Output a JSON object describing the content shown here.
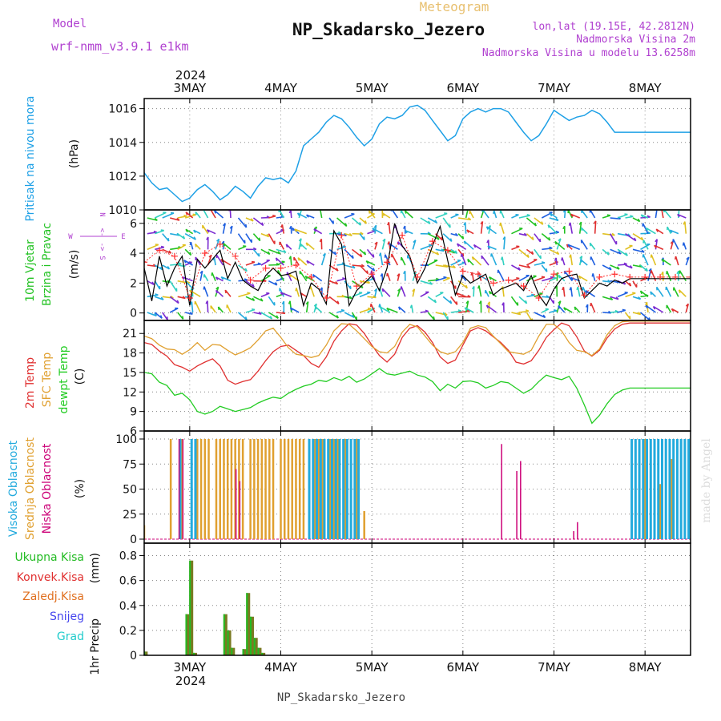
{
  "header": {
    "model_label": "Model",
    "model_name": "wrf-nmm_v3.9.1 e1km",
    "meteogram_label": "Meteogram",
    "station_title": "NP_Skadarsko_Jezero",
    "coords": "lon,lat (19.15E, 42.2812N)",
    "elevation": "Nadmorska Visina 2m",
    "model_elevation": "Nadmorska Visina u modelu 13.6258m",
    "footer_title": "NP_Skadarsko_Jezero",
    "watermark": "made by Angel"
  },
  "time_axis": {
    "year": "2024",
    "days": [
      "3MAY",
      "4MAY",
      "5MAY",
      "6MAY",
      "7MAY",
      "8MAY"
    ],
    "day_hours": [
      12,
      36,
      60,
      84,
      108,
      132
    ],
    "range_hours": [
      0,
      144
    ]
  },
  "colors": {
    "pressure": "#1ea0e6",
    "wind_title": "#22c222",
    "wind_speed": "#000000",
    "gust": "#ff3030",
    "temp2m": "#e03030",
    "sfc_temp": "#e0a030",
    "dewpt": "#22cc22",
    "cloud_high": "#22aadd",
    "cloud_mid": "#e0a030",
    "cloud_low": "#cc0077",
    "precip_total": "#22bb22",
    "precip_conv": "#e03030",
    "precip_frozen": "#e07020",
    "snow": "#4444ee",
    "graupel": "#22cccc",
    "precip_bar": "#7a7a22",
    "compass": "#b040d0",
    "grid": "#888888"
  },
  "chart_data": [
    {
      "type": "line",
      "ylabel": "Pritisak na nivou mora",
      "unit": "(hPa)",
      "ylim": [
        1010,
        1016.6
      ],
      "yticks": [
        1010,
        1012,
        1014,
        1016
      ],
      "grid": true,
      "x": [
        0,
        2,
        4,
        6,
        8,
        10,
        12,
        14,
        16,
        18,
        20,
        22,
        24,
        26,
        28,
        30,
        32,
        34,
        36,
        38,
        40,
        42,
        44,
        46,
        48,
        50,
        52,
        54,
        56,
        58,
        60,
        62,
        64,
        66,
        68,
        70,
        72,
        74,
        76,
        78,
        80,
        82,
        84,
        86,
        88,
        90,
        92,
        94,
        96,
        98,
        100,
        102,
        104,
        106,
        108,
        110,
        112,
        114,
        116,
        118,
        120,
        122,
        124,
        126,
        128,
        130,
        132,
        134,
        136,
        138,
        140,
        142,
        144
      ],
      "values": [
        1012.2,
        1011.6,
        1011.2,
        1011.3,
        1010.9,
        1010.5,
        1010.7,
        1011.2,
        1011.5,
        1011.1,
        1010.6,
        1010.9,
        1011.4,
        1011.1,
        1010.7,
        1011.4,
        1011.9,
        1011.8,
        1011.9,
        1011.6,
        1012.3,
        1013.8,
        1014.2,
        1014.6,
        1015.2,
        1015.6,
        1015.4,
        1014.9,
        1014.3,
        1013.8,
        1014.2,
        1015.1,
        1015.5,
        1015.4,
        1015.6,
        1016.1,
        1016.2,
        1015.9,
        1015.3,
        1014.7,
        1014.1,
        1014.4,
        1015.4,
        1015.8,
        1016.0,
        1015.8,
        1016.0,
        1016.0,
        1015.8,
        1015.2,
        1014.6,
        1014.1,
        1014.4,
        1015.1,
        1015.9,
        1015.6,
        1015.3,
        1015.5,
        1015.6,
        1015.9,
        1015.7,
        1015.2,
        1014.6,
        1014.6,
        1014.6,
        1014.6,
        1014.6,
        1014.6,
        1014.6,
        1014.6,
        1014.6,
        1014.6,
        1014.6
      ]
    },
    {
      "type": "line",
      "title": "10m Vjetar",
      "ylabel": "Brzina i Pravac",
      "unit": "(m/s)",
      "compass": {
        "north": "N",
        "west": "W",
        "east": "E",
        "south": "S",
        "left": "<-",
        "right": "->"
      },
      "ylim": [
        -0.5,
        6.9
      ],
      "yticks": [
        0,
        2,
        4,
        6
      ],
      "grid": true,
      "series": [
        {
          "role": "speed",
          "x": [
            0,
            2,
            4,
            6,
            8,
            10,
            12,
            14,
            16,
            18,
            20,
            22,
            24,
            26,
            28,
            30,
            32,
            34,
            36,
            38,
            40,
            42,
            44,
            46,
            48,
            50,
            52,
            54,
            56,
            58,
            60,
            62,
            64,
            66,
            68,
            70,
            72,
            74,
            76,
            78,
            80,
            82,
            84,
            86,
            88,
            90,
            92,
            94,
            96,
            98,
            100,
            102,
            104,
            106,
            108,
            110,
            112,
            114,
            116,
            118,
            120,
            122,
            124,
            126,
            128,
            130,
            132,
            134,
            136,
            138,
            140,
            142,
            144
          ],
          "values": [
            3.0,
            0.8,
            3.8,
            1.8,
            3.0,
            3.8,
            0.5,
            3.6,
            3.0,
            3.6,
            4.2,
            2.3,
            3.4,
            2.2,
            1.8,
            1.5,
            2.5,
            3.0,
            2.5,
            2.6,
            2.8,
            0.5,
            2.0,
            1.6,
            0.6,
            5.5,
            4.6,
            0.5,
            1.5,
            2.0,
            2.5,
            1.5,
            3.0,
            6.0,
            4.5,
            3.8,
            2.0,
            3.0,
            4.5,
            5.8,
            3.5,
            1.2,
            2.5,
            2.0,
            2.3,
            2.6,
            1.2,
            1.6,
            1.8,
            2.0,
            1.5,
            2.5,
            1.2,
            0.5,
            1.6,
            2.3,
            2.5,
            2.6,
            1.0,
            1.5,
            2.0,
            1.8,
            2.2,
            2.0,
            2.3,
            2.3,
            2.3,
            2.3,
            2.3,
            2.3,
            2.3,
            2.3,
            2.3
          ]
        },
        {
          "role": "gust",
          "x": [
            0,
            4,
            8,
            12,
            16,
            20,
            24,
            28,
            32,
            36,
            40,
            44,
            48,
            52,
            56,
            60,
            64,
            68,
            72,
            76,
            80,
            84,
            88,
            92,
            96,
            100,
            104,
            108,
            112,
            116,
            120,
            124,
            128,
            132,
            136,
            140,
            144
          ],
          "values": [
            3.4,
            4.2,
            3.8,
            1.0,
            4.0,
            4.6,
            3.8,
            2.2,
            3.0,
            3.0,
            3.2,
            2.4,
            1.0,
            5.2,
            1.8,
            2.6,
            3.4,
            5.2,
            2.4,
            4.8,
            4.2,
            2.8,
            2.6,
            2.0,
            2.2,
            1.8,
            1.0,
            2.6,
            2.8,
            1.2,
            2.4,
            2.6,
            2.4,
            2.4,
            2.4,
            2.4,
            2.4
          ]
        }
      ]
    },
    {
      "type": "line",
      "ylabel": "2m Temp",
      "ylabel2": "SFC Temp",
      "ylabel3": "dewpt Temp",
      "unit": "(C)",
      "ylim": [
        6,
        23
      ],
      "yticks": [
        6,
        9,
        12,
        15,
        18,
        21
      ],
      "grid": true,
      "series": [
        {
          "role": "temp2m",
          "x": [
            0,
            2,
            4,
            6,
            8,
            10,
            12,
            14,
            16,
            18,
            20,
            22,
            24,
            26,
            28,
            30,
            32,
            34,
            36,
            38,
            40,
            42,
            44,
            46,
            48,
            50,
            52,
            54,
            56,
            58,
            60,
            62,
            64,
            66,
            68,
            70,
            72,
            74,
            76,
            78,
            80,
            82,
            84,
            86,
            88,
            90,
            92,
            94,
            96,
            98,
            100,
            102,
            104,
            106,
            108,
            110,
            112,
            114,
            116,
            118,
            120,
            122,
            124,
            126,
            128,
            130,
            132,
            134,
            136,
            138,
            140,
            142,
            144
          ],
          "values": [
            19.6,
            19.3,
            18.3,
            17.5,
            16.2,
            15.8,
            15.2,
            16.0,
            16.6,
            17.1,
            16.0,
            13.8,
            13.2,
            13.6,
            13.9,
            15.2,
            16.8,
            18.2,
            19.0,
            19.2,
            18.4,
            17.6,
            16.4,
            15.8,
            17.4,
            19.8,
            21.4,
            22.5,
            22.3,
            21.0,
            19.2,
            17.6,
            16.6,
            17.8,
            20.4,
            21.8,
            22.2,
            21.2,
            19.6,
            17.4,
            16.4,
            16.9,
            19.2,
            21.4,
            21.9,
            21.4,
            20.5,
            19.6,
            18.4,
            16.6,
            16.3,
            16.8,
            18.4,
            20.4,
            21.6,
            22.6,
            22.2,
            20.5,
            18.3,
            17.5,
            18.4,
            20.3,
            21.7,
            22.4,
            22.6,
            22.6,
            22.6,
            22.6,
            22.6,
            22.6,
            22.6,
            22.6,
            22.6
          ]
        },
        {
          "role": "sfc_temp",
          "x": [
            0,
            2,
            4,
            6,
            8,
            10,
            12,
            14,
            16,
            18,
            20,
            22,
            24,
            26,
            28,
            30,
            32,
            34,
            36,
            38,
            40,
            42,
            44,
            46,
            48,
            50,
            52,
            54,
            56,
            58,
            60,
            62,
            64,
            66,
            68,
            70,
            72,
            74,
            76,
            78,
            80,
            82,
            84,
            86,
            88,
            90,
            92,
            94,
            96,
            98,
            100,
            102,
            104,
            106,
            108,
            110,
            112,
            114,
            116,
            118,
            120,
            122,
            124,
            126,
            128,
            130,
            132,
            134,
            136,
            138,
            140,
            142,
            144
          ],
          "values": [
            20.6,
            20.2,
            19.2,
            18.6,
            18.5,
            17.8,
            18.5,
            19.6,
            18.4,
            19.3,
            19.2,
            18.4,
            17.7,
            18.2,
            18.8,
            20.0,
            21.4,
            21.8,
            20.4,
            18.8,
            17.8,
            17.6,
            17.3,
            17.6,
            19.2,
            21.4,
            22.5,
            22.4,
            21.4,
            20.2,
            19.0,
            18.2,
            18.0,
            19.0,
            21.2,
            22.4,
            22.0,
            20.6,
            19.2,
            18.2,
            17.8,
            18.2,
            19.6,
            21.8,
            22.2,
            21.9,
            20.6,
            19.4,
            18.2,
            18.0,
            17.8,
            18.4,
            20.6,
            22.4,
            22.4,
            21.4,
            19.6,
            18.4,
            18.2,
            17.6,
            18.6,
            20.8,
            22.2,
            22.8,
            22.9,
            22.9,
            22.9,
            22.9,
            22.9,
            22.9,
            22.9,
            22.9,
            22.9
          ]
        },
        {
          "role": "dewpt",
          "x": [
            0,
            2,
            4,
            6,
            8,
            10,
            12,
            14,
            16,
            18,
            20,
            22,
            24,
            26,
            28,
            30,
            32,
            34,
            36,
            38,
            40,
            42,
            44,
            46,
            48,
            50,
            52,
            54,
            56,
            58,
            60,
            62,
            64,
            66,
            68,
            70,
            72,
            74,
            76,
            78,
            80,
            82,
            84,
            86,
            88,
            90,
            92,
            94,
            96,
            98,
            100,
            102,
            104,
            106,
            108,
            110,
            112,
            114,
            116,
            118,
            120,
            122,
            124,
            126,
            128,
            130,
            132,
            134,
            136,
            138,
            140,
            142,
            144
          ],
          "values": [
            15.0,
            14.8,
            13.5,
            13.0,
            11.5,
            11.8,
            10.8,
            9.0,
            8.6,
            9.0,
            9.8,
            9.4,
            9.0,
            9.3,
            9.6,
            10.3,
            10.8,
            11.2,
            11.0,
            11.8,
            12.4,
            12.9,
            13.2,
            13.8,
            13.6,
            14.2,
            13.8,
            14.4,
            13.5,
            14.0,
            14.8,
            15.6,
            14.8,
            14.6,
            14.9,
            15.2,
            14.6,
            14.3,
            13.6,
            12.2,
            13.2,
            12.6,
            13.6,
            13.7,
            13.4,
            12.6,
            13.0,
            13.6,
            13.4,
            12.6,
            11.8,
            12.4,
            13.6,
            14.6,
            14.2,
            13.9,
            14.4,
            12.6,
            10.0,
            7.2,
            8.4,
            10.2,
            11.6,
            12.3,
            12.6,
            12.6,
            12.6,
            12.6,
            12.6,
            12.6,
            12.6,
            12.6,
            12.6
          ]
        }
      ]
    },
    {
      "type": "bar",
      "ylabel": "Visoka Oblacnost",
      "ylabel2": "Srednja Oblacnost",
      "ylabel3": "Niska Oblacnost",
      "unit": "(%)",
      "ylim": [
        -4,
        108
      ],
      "yticks": [
        0,
        25,
        50,
        75,
        100
      ],
      "grid": true,
      "bar_hour_step": 1,
      "high_runs": [
        [
          9,
          10,
          100
        ],
        [
          12,
          14,
          100
        ],
        [
          43,
          57,
          100
        ],
        [
          128,
          144,
          100
        ]
      ],
      "mid_runs": [
        [
          7,
          8,
          100
        ],
        [
          10,
          11,
          100
        ],
        [
          14,
          18,
          100
        ],
        [
          19,
          27,
          100
        ],
        [
          28,
          35,
          100
        ],
        [
          36,
          43,
          100
        ],
        [
          45,
          48,
          100
        ],
        [
          49,
          52,
          100
        ],
        [
          53,
          54,
          100
        ],
        [
          56,
          57,
          100
        ],
        [
          132,
          133,
          100
        ],
        [
          136,
          137,
          55
        ],
        [
          139,
          140,
          80
        ]
      ],
      "low_points": [
        [
          9,
          100
        ],
        [
          10,
          100
        ],
        [
          24,
          70
        ],
        [
          25,
          58
        ],
        [
          94,
          95
        ],
        [
          98,
          68
        ],
        [
          99,
          78
        ],
        [
          113,
          8
        ],
        [
          114,
          17
        ]
      ],
      "mid_points": [
        [
          0,
          14
        ],
        [
          58,
          28
        ]
      ]
    },
    {
      "type": "bar",
      "ylabel": "1hr Precip",
      "unit": "(mm)",
      "ylim": [
        0,
        0.9
      ],
      "yticks": [
        0,
        0.2,
        0.4,
        0.6,
        0.8
      ],
      "grid": true,
      "legend": [
        "Ukupna Kisa",
        "Konvek.Kisa",
        "Zaledj.Kisa",
        "Snijeg",
        "Grad"
      ],
      "x": [
        0,
        11,
        12,
        13,
        21,
        22,
        23,
        26,
        27,
        28,
        29,
        30,
        31
      ],
      "values": [
        0.03,
        0.33,
        0.76,
        0.02,
        0.33,
        0.2,
        0.06,
        0.05,
        0.5,
        0.31,
        0.14,
        0.06,
        0.02
      ]
    }
  ]
}
